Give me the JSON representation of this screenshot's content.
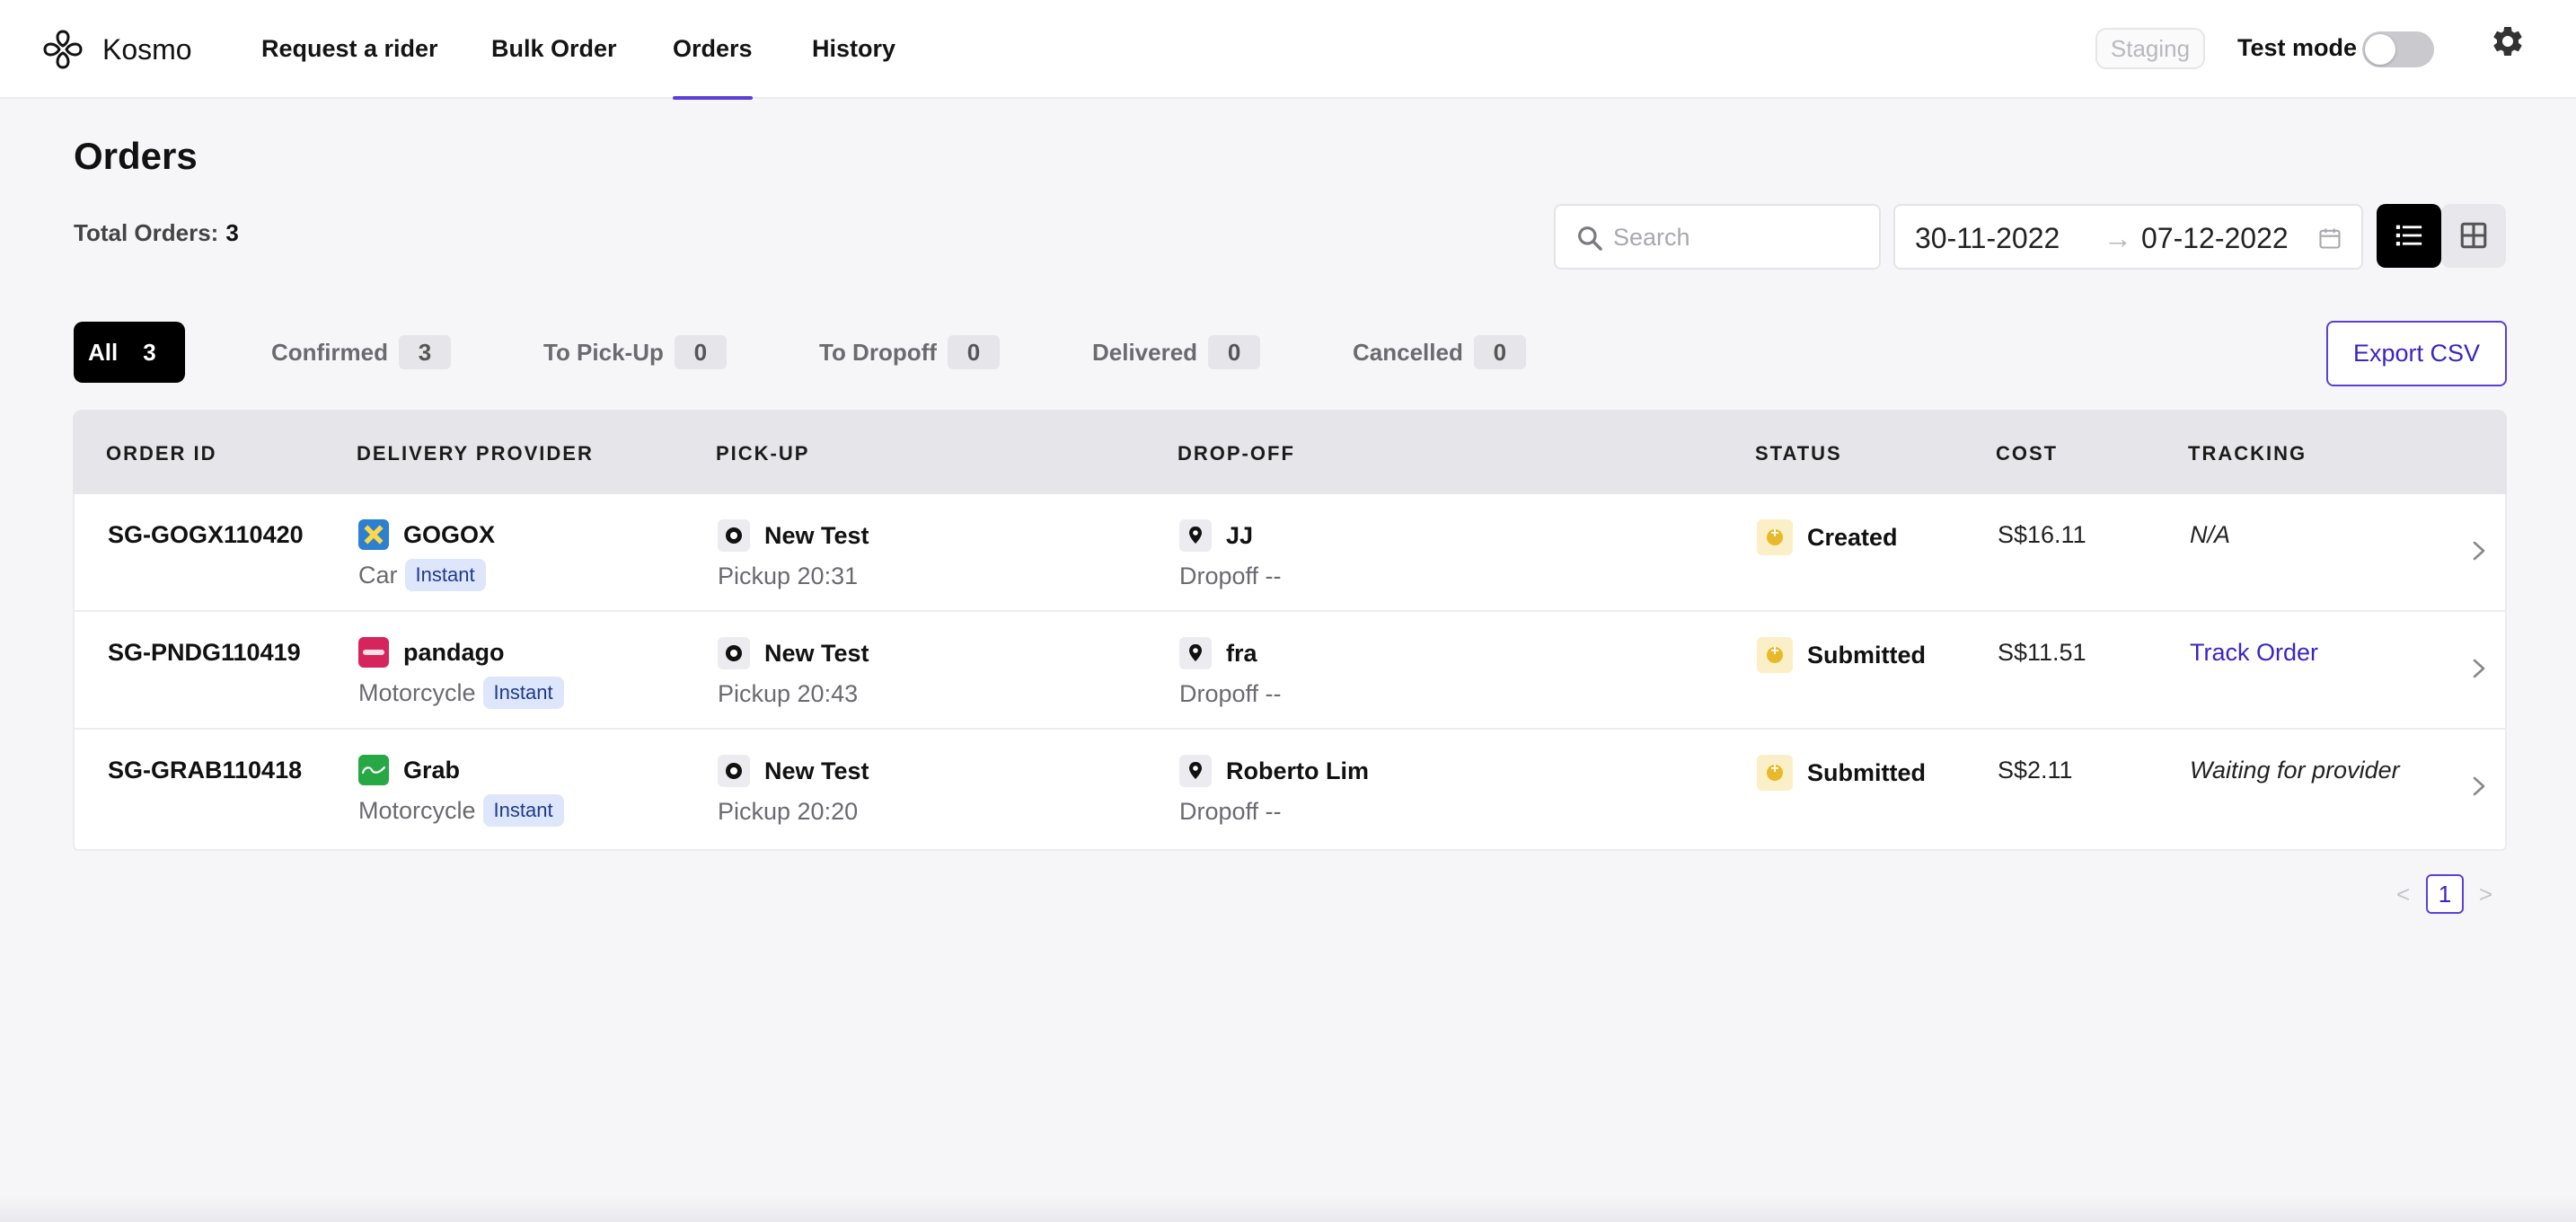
{
  "app": {
    "brand": "Kosmo",
    "nav": [
      {
        "label": "Request a rider"
      },
      {
        "label": "Bulk Order"
      },
      {
        "label": "Orders",
        "active": true
      },
      {
        "label": "History"
      }
    ],
    "env_badge": "Staging",
    "test_mode_label": "Test mode",
    "test_mode_on": false,
    "accent_color": "#5b3fd6"
  },
  "page": {
    "title": "Orders",
    "total_label": "Total Orders:",
    "total_value": "3"
  },
  "toolbar": {
    "search_placeholder": "Search",
    "date_from": "30-11-2022",
    "date_arrow": "→",
    "date_to": "07-12-2022",
    "view_mode": "list",
    "export_label": "Export CSV"
  },
  "filters": [
    {
      "label": "All",
      "count": "3",
      "active": true
    },
    {
      "label": "Confirmed",
      "count": "3"
    },
    {
      "label": "To Pick-Up",
      "count": "0"
    },
    {
      "label": "To Dropoff",
      "count": "0"
    },
    {
      "label": "Delivered",
      "count": "0"
    },
    {
      "label": "Cancelled",
      "count": "0"
    }
  ],
  "table": {
    "columns": [
      "ORDER ID",
      "DELIVERY PROVIDER",
      "PICK-UP",
      "DROP-OFF",
      "STATUS",
      "COST",
      "TRACKING"
    ],
    "rows": [
      {
        "order_id": "SG-GOGX110420",
        "provider": "GOGOX",
        "provider_logo": "gogox-logo",
        "vehicle": "Car",
        "service": "Instant",
        "pickup_name": "New Test",
        "pickup_time": "Pickup 20:31",
        "dropoff_name": "JJ",
        "dropoff_time": "Dropoff --",
        "status": "Created",
        "cost": "S$16.11",
        "tracking": "N/A",
        "tracking_type": "italic"
      },
      {
        "order_id": "SG-PNDG110419",
        "provider": "pandago",
        "provider_logo": "pandago-logo",
        "vehicle": "Motorcycle",
        "service": "Instant",
        "pickup_name": "New Test",
        "pickup_time": "Pickup 20:43",
        "dropoff_name": "fra",
        "dropoff_time": "Dropoff --",
        "status": "Submitted",
        "cost": "S$11.51",
        "tracking": "Track Order",
        "tracking_type": "link"
      },
      {
        "order_id": "SG-GRAB110418",
        "provider": "Grab",
        "provider_logo": "grab-logo",
        "vehicle": "Motorcycle",
        "service": "Instant",
        "pickup_name": "New Test",
        "pickup_time": "Pickup 20:20",
        "dropoff_name": "Roberto Lim",
        "dropoff_time": "Dropoff --",
        "status": "Submitted",
        "cost": "S$2.11",
        "tracking": "Waiting for provider",
        "tracking_type": "italic"
      }
    ]
  },
  "pagination": {
    "prev": "<",
    "current": "1",
    "next": ">"
  }
}
